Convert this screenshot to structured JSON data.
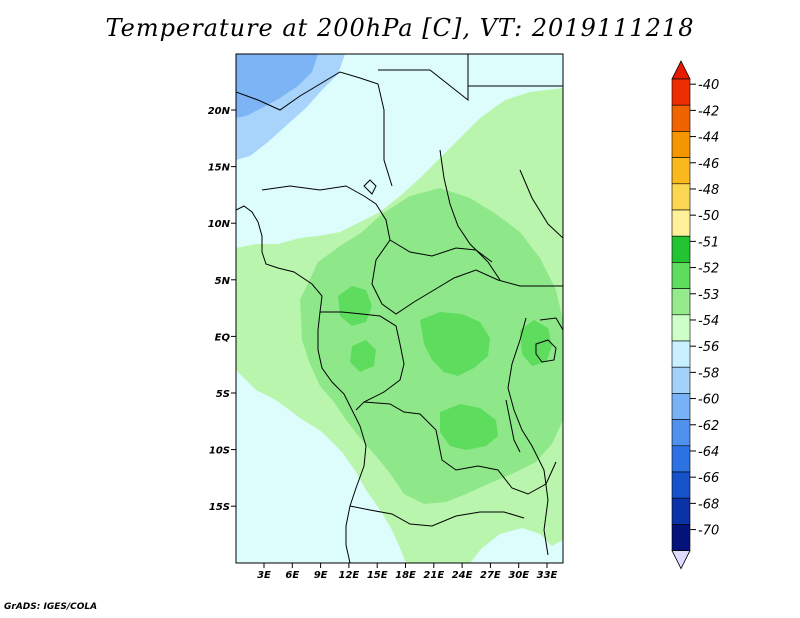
{
  "title": "Temperature at 200hPa [C], VT: 2019111218",
  "credit": "GrADS: IGES/COLA",
  "lat_labels": [
    "20N",
    "15N",
    "10N",
    "5N",
    "EQ",
    "5S",
    "10S",
    "15S"
  ],
  "lon_labels": [
    "3E",
    "6E",
    "9E",
    "12E",
    "15E",
    "18E",
    "21E",
    "24E",
    "27E",
    "30E",
    "33E"
  ],
  "colorbar": {
    "labels": [
      "-40",
      "-42",
      "-44",
      "-46",
      "-48",
      "-50",
      "-51",
      "-52",
      "-53",
      "-54",
      "-56",
      "-58",
      "-60",
      "-62",
      "-64",
      "-66",
      "-68",
      "-70"
    ],
    "colors": [
      "#ee2d00",
      "#f06400",
      "#f59600",
      "#f9b81c",
      "#fad652",
      "#fff19a",
      "#22c432",
      "#5edc5e",
      "#95eb8c",
      "#ceffc8",
      "#c8f0ff",
      "#a2d2fa",
      "#78b2f6",
      "#4f92ee",
      "#2c72e3",
      "#1652c9",
      "#0b32a6",
      "#03137a"
    ],
    "top_arrow_color": "#e51a00",
    "bottom_arrow_color": "#dcdcff"
  },
  "field_colors": {
    "ocean_light": "#ddfdfd",
    "green_light": "#baf5ad",
    "green_mid": "#8ee88a",
    "green_dark": "#5edc5e",
    "blue_light": "#a8d4fb",
    "blue_mid": "#7cb4f6",
    "coast": "#000000"
  }
}
